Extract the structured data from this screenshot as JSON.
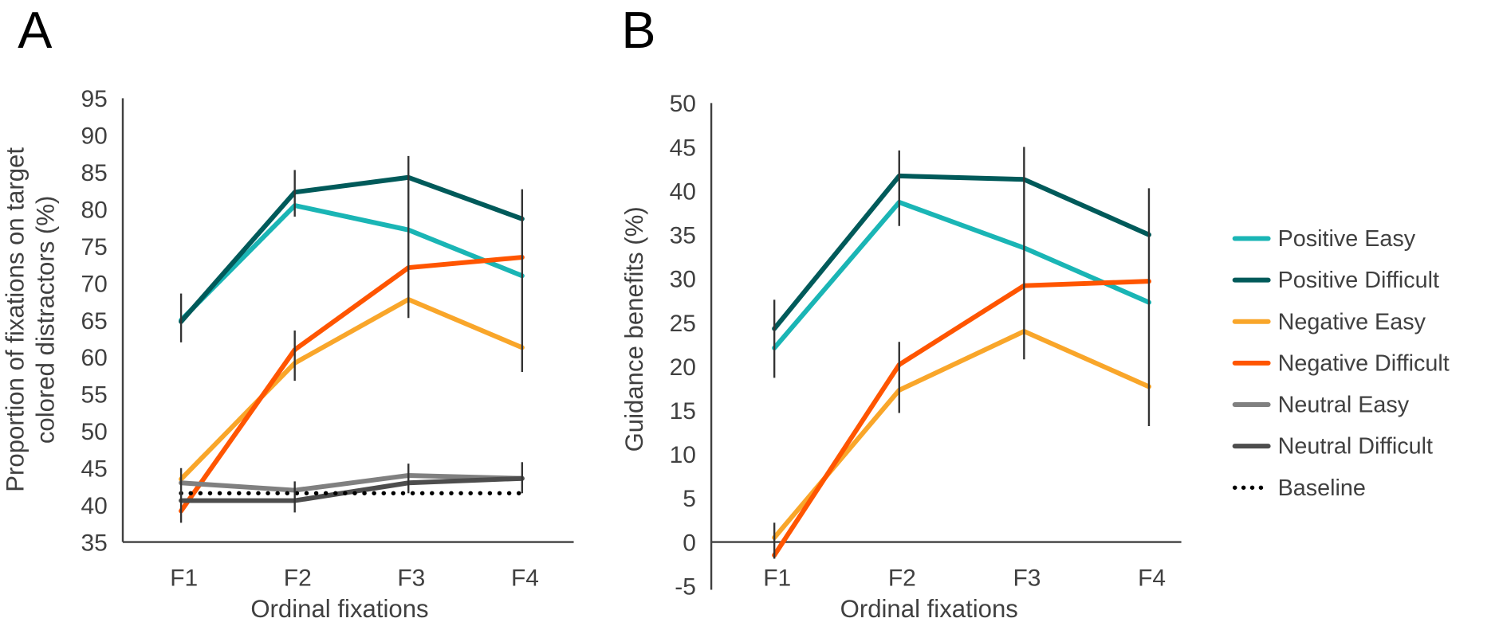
{
  "chart_data": [
    {
      "panel_label": "A",
      "type": "line",
      "categories": [
        "F1",
        "F2",
        "F3",
        "F4"
      ],
      "xlabel": "Ordinal fixations",
      "ylabel_lines": [
        "Proportion of fixations on target",
        "colored distractors (%)"
      ],
      "ylim": [
        35,
        95
      ],
      "yticks": [
        35,
        40,
        45,
        50,
        55,
        60,
        65,
        70,
        75,
        80,
        85,
        90,
        95
      ],
      "grid": false,
      "series": [
        {
          "name": "Positive Easy",
          "color": "#1ab5b5",
          "values": [
            65.0,
            80.5,
            77.2,
            71.0
          ]
        },
        {
          "name": "Positive Difficult",
          "color": "#005a5a",
          "values": [
            64.8,
            82.3,
            84.3,
            78.7
          ]
        },
        {
          "name": "Negative Easy",
          "color": "#f9a62a",
          "values": [
            43.5,
            59.2,
            67.8,
            61.3
          ]
        },
        {
          "name": "Negative Difficult",
          "color": "#ff5500",
          "values": [
            39.2,
            61.0,
            72.1,
            73.5
          ]
        },
        {
          "name": "Neutral Easy",
          "color": "#808080",
          "values": [
            43.0,
            42.0,
            44.0,
            43.6
          ]
        },
        {
          "name": "Neutral Difficult",
          "color": "#4d4d4d",
          "values": [
            40.6,
            40.6,
            43.0,
            43.6
          ]
        },
        {
          "name": "Baseline",
          "color": "#000000",
          "dotted": true,
          "values": [
            41.6,
            41.6,
            41.6,
            41.6
          ]
        }
      ],
      "error_bars": [
        {
          "category": "F1",
          "low": 62.0,
          "high": 68.6
        },
        {
          "category": "F1",
          "low": 37.6,
          "high": 45.0
        },
        {
          "category": "F2",
          "low": 79.0,
          "high": 85.3
        },
        {
          "category": "F2",
          "low": 56.8,
          "high": 63.6
        },
        {
          "category": "F2",
          "low": 39.0,
          "high": 43.2
        },
        {
          "category": "F3",
          "low": 65.3,
          "high": 87.2
        },
        {
          "category": "F3",
          "low": 41.6,
          "high": 45.6
        },
        {
          "category": "F4",
          "low": 58.0,
          "high": 82.7
        },
        {
          "category": "F4",
          "low": 41.6,
          "high": 45.8
        }
      ]
    },
    {
      "panel_label": "B",
      "type": "line",
      "categories": [
        "F1",
        "F2",
        "F3",
        "F4"
      ],
      "xlabel": "Ordinal fixations",
      "ylabel": "Guidance benefits (%)",
      "ylim": [
        -5,
        50
      ],
      "yticks": [
        -5,
        0,
        5,
        10,
        15,
        20,
        25,
        30,
        35,
        40,
        45,
        50
      ],
      "grid": false,
      "series": [
        {
          "name": "Positive Easy",
          "color": "#1ab5b5",
          "values": [
            22.1,
            38.7,
            33.5,
            27.3
          ]
        },
        {
          "name": "Positive Difficult",
          "color": "#005a5a",
          "values": [
            24.3,
            41.7,
            41.3,
            35.0
          ]
        },
        {
          "name": "Negative Easy",
          "color": "#f9a62a",
          "values": [
            0.5,
            17.3,
            24.0,
            17.7
          ]
        },
        {
          "name": "Negative Difficult",
          "color": "#ff5500",
          "values": [
            -1.5,
            20.2,
            29.2,
            29.7
          ]
        }
      ],
      "error_bars": [
        {
          "category": "F1",
          "low": 18.7,
          "high": 27.6
        },
        {
          "category": "F1",
          "low": -1.9,
          "high": 2.2
        },
        {
          "category": "F2",
          "low": 36.0,
          "high": 44.6
        },
        {
          "category": "F2",
          "low": 14.7,
          "high": 22.8
        },
        {
          "category": "F3",
          "low": 20.8,
          "high": 45.0
        },
        {
          "category": "F4",
          "low": 13.2,
          "high": 40.3
        }
      ]
    }
  ],
  "legend": {
    "placement": "right",
    "entries": [
      {
        "label": "Positive Easy",
        "color": "#1ab5b5"
      },
      {
        "label": "Positive Difficult",
        "color": "#005a5a"
      },
      {
        "label": "Negative Easy",
        "color": "#f9a62a"
      },
      {
        "label": "Negative Difficult",
        "color": "#ff5500"
      },
      {
        "label": "Neutral Easy",
        "color": "#808080"
      },
      {
        "label": "Neutral Difficult",
        "color": "#4d4d4d"
      },
      {
        "label": "Baseline",
        "color": "#000000",
        "dotted": true
      }
    ]
  }
}
